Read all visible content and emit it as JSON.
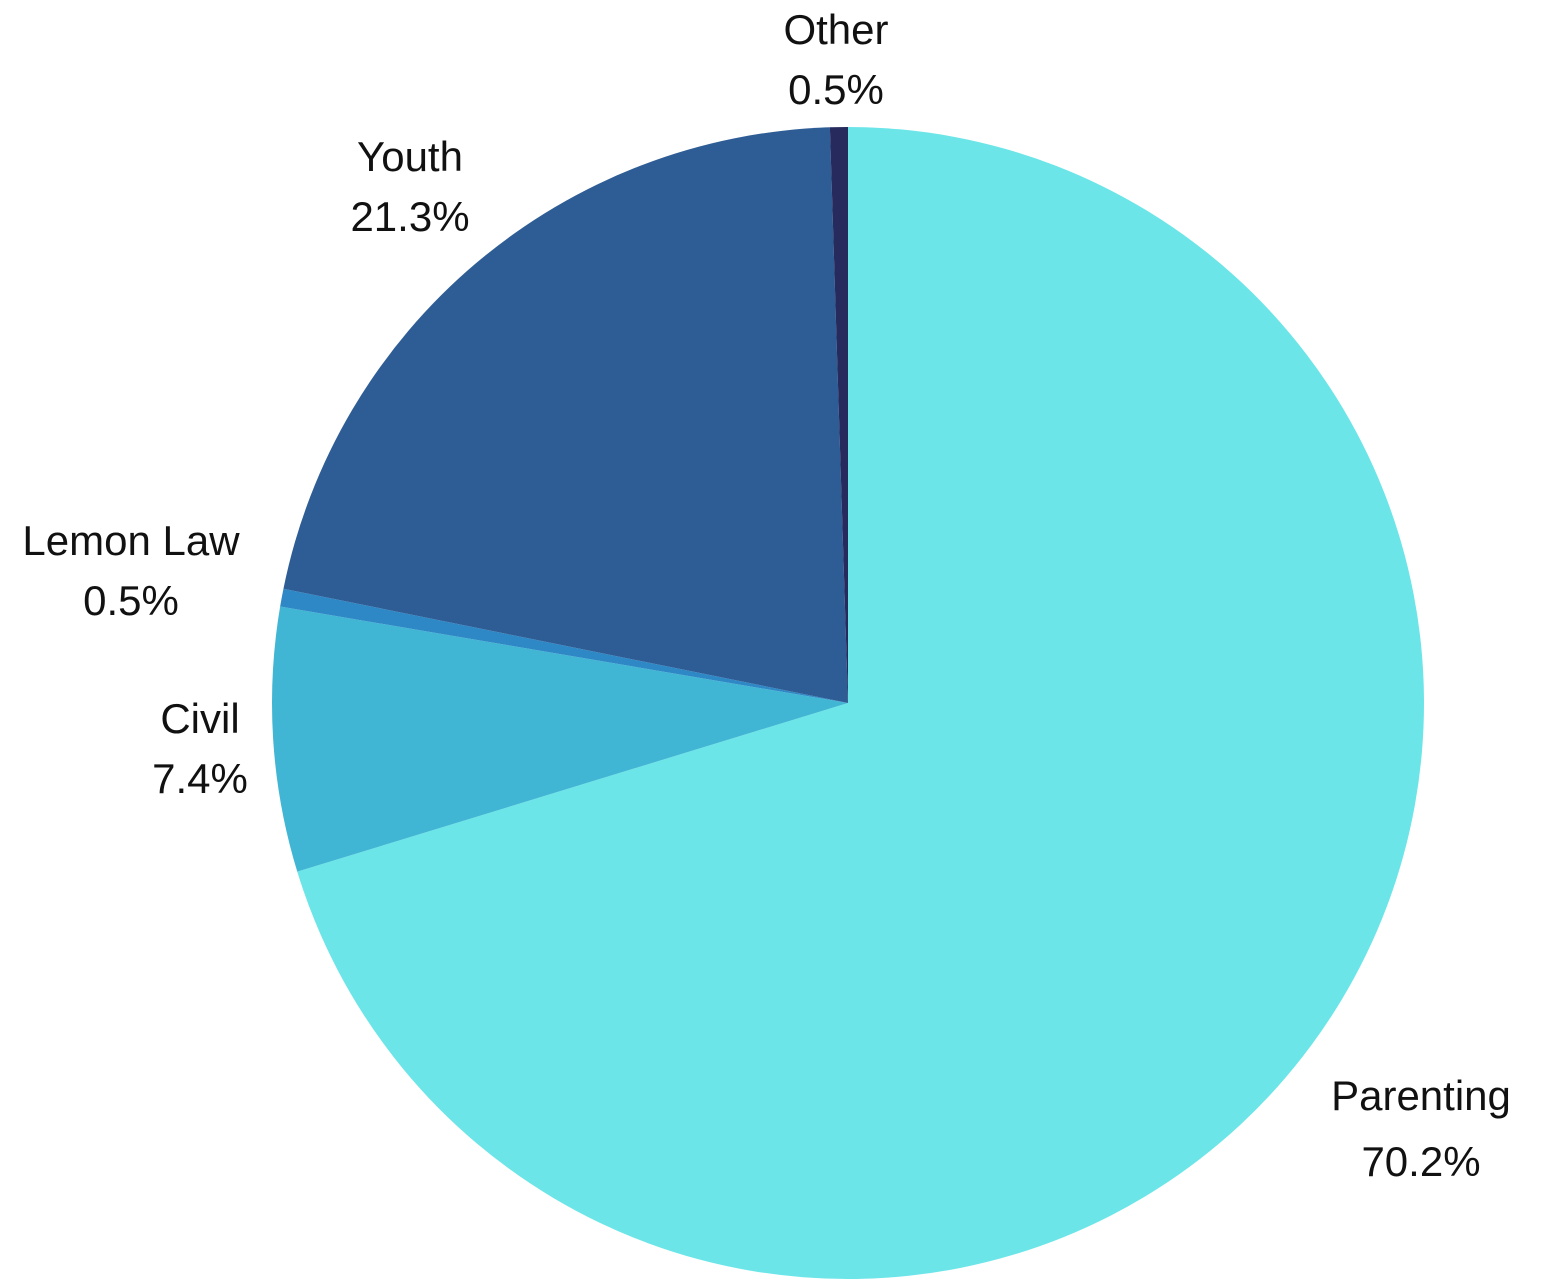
{
  "chart_data": {
    "type": "pie",
    "start_angle_deg": 0,
    "direction": "clockwise",
    "slices": [
      {
        "label": "Parenting",
        "value": 70.2,
        "value_label": "70.2%",
        "color": "#6be5e8"
      },
      {
        "label": "Civil",
        "value": 7.4,
        "value_label": "7.4%",
        "color": "#41b6d4"
      },
      {
        "label": "Lemon Law",
        "value": 0.5,
        "value_label": "0.5%",
        "color": "#2f88c6"
      },
      {
        "label": "Youth",
        "value": 21.3,
        "value_label": "21.3%",
        "color": "#2e5d95"
      },
      {
        "label": "Other",
        "value": 0.5,
        "value_label": "0.5%",
        "color": "#262a5c"
      }
    ]
  }
}
